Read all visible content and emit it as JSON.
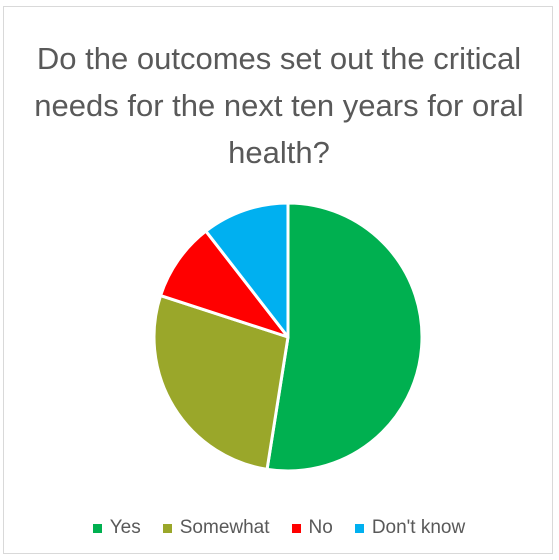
{
  "chart_data": {
    "type": "pie",
    "title": "Do the outcomes set out the critical needs for the next ten years for oral health?",
    "categories": [
      "Yes",
      "Somewhat",
      "No",
      "Don't know"
    ],
    "values": [
      52.5,
      27.5,
      9.5,
      10.5
    ],
    "colors": [
      "#00b050",
      "#9aa72a",
      "#ff0000",
      "#00b0f0"
    ],
    "start_angle_deg": 0,
    "direction": "clockwise",
    "legend_position": "bottom"
  }
}
